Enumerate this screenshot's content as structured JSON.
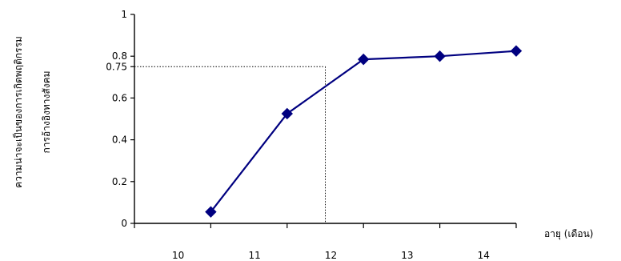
{
  "chart_data": {
    "type": "line",
    "title": "",
    "xlabel": "อายุ (เดือน)",
    "ylabel": [
      "ความน่าจะเป็นของการเกิดพฤติกรรม",
      "การอ้างอิงทางสังคม"
    ],
    "x_ticks": [
      10,
      11,
      12,
      13,
      14
    ],
    "y_ticks": [
      "0",
      "0.2",
      "0.4",
      "0.6",
      "0.75",
      "0.8",
      "1"
    ],
    "xlim": [
      9.5,
      14.5
    ],
    "ylim": [
      0,
      1
    ],
    "grid": false,
    "series": [
      {
        "color": "#000080",
        "marker": "diamond",
        "x": [
          10.5,
          11.5,
          12.5,
          13.5,
          14.5
        ],
        "y": [
          0.055,
          0.525,
          0.785,
          0.8,
          0.825
        ]
      }
    ],
    "reference": {
      "x": 12,
      "y": 0.75,
      "style": "dotted"
    }
  }
}
